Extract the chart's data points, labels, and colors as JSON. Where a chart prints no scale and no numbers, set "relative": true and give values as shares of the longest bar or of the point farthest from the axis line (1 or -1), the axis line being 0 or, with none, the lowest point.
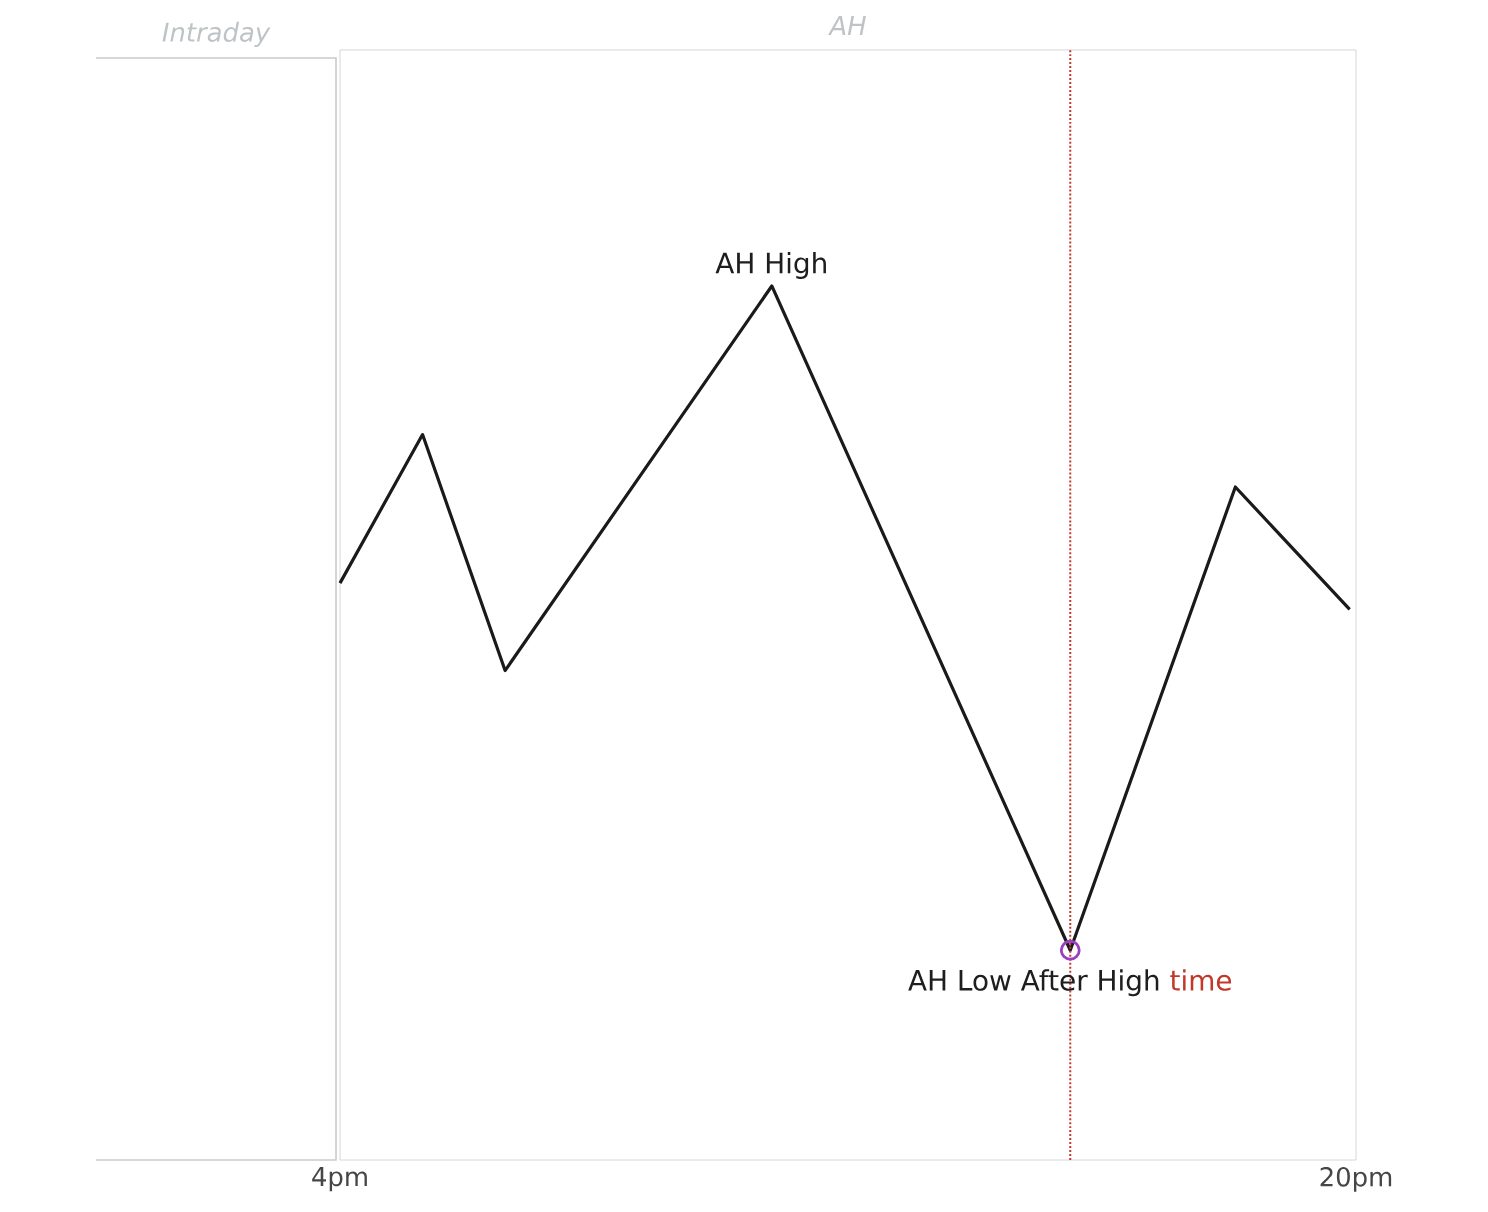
{
  "chart_data": {
    "type": "line",
    "title": "AH",
    "relative": true,
    "x": [
      4,
      5.3,
      6.6,
      10.8,
      15.5,
      18.1,
      19.9
    ],
    "xlim": [
      4,
      20
    ],
    "xticks": [
      {
        "value": 4,
        "label": "4pm"
      },
      {
        "value": 20,
        "label": "20pm"
      }
    ],
    "series": [
      {
        "color": "#1a1a1a",
        "values": [
          0.66,
          0.83,
          0.56,
          1,
          0.24,
          0.77,
          0.63
        ]
      },
      {
        "type": "scatter",
        "color": "#9b3fc0",
        "marker": "circle",
        "x": [
          15.5
        ],
        "values": [
          0.24
        ]
      }
    ],
    "ref_lines": [
      {
        "axis": "x",
        "value": 15.5,
        "label": "time",
        "color": "#c0392b",
        "line_style": "dotted"
      }
    ],
    "annotations": [
      {
        "text": "AH High",
        "x": 10.8,
        "y": 1
      },
      {
        "text": "AH Low After High",
        "x": 15.5,
        "y": 0.24
      },
      "Intraday"
    ]
  }
}
